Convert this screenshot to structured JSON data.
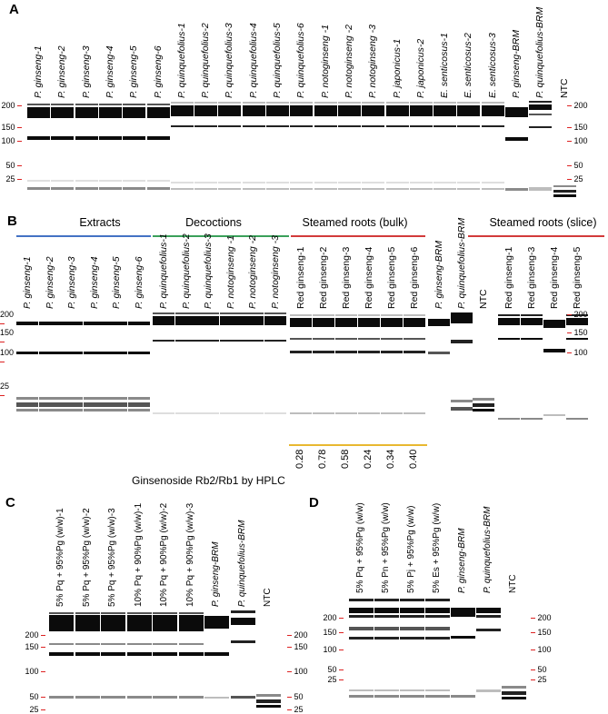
{
  "panels": {
    "A": {
      "letter": "A",
      "lanes": [
        "P. ginseng-1",
        "P. ginseng-2",
        "P. ginseng-3",
        "P. ginseng-4",
        "P. ginseng-5",
        "P. ginseng-6",
        "P. quinquefolius-1",
        "P. quinquefolius-2",
        "P. quinquefolius-3",
        "P. quinquefolius-4",
        "P. quinquefolius-5",
        "P. quinquefolius-6",
        "P. notoginseng -1",
        "P. notoginseng -2",
        "P. notoginseng -3",
        "P. japonicus-1",
        "P. japonicus-2",
        "E. senticosus-1",
        "E. senticosus-2",
        "E. senticosus-3",
        "P. ginseng-BRM",
        "P. quinquefolius-BRM",
        "NTC"
      ],
      "markers_left": [
        "200",
        "150",
        "100",
        "50",
        "25"
      ],
      "markers_right": [
        "200",
        "150",
        "100",
        "50",
        "25"
      ]
    },
    "B": {
      "letter": "B",
      "groups": [
        "Extracts",
        "Decoctions",
        "Steamed roots (bulk)",
        "Steamed roots (slice)"
      ],
      "lanes": [
        "P. ginseng-1",
        "P. ginseng-2",
        "P. ginseng-3",
        "P. ginseng-4",
        "P. ginseng-5",
        "P. ginseng-6",
        "P. quinquefolius-1",
        "P. quinquefolius-2",
        "P. quinquefolius-3",
        "P. notoginseng -1",
        "P. notoginseng -2",
        "P. notoginseng -3",
        "Red ginseng-1",
        "Red ginseng-2",
        "Red ginseng-3",
        "Red ginseng-4",
        "Red ginseng-5",
        "Red ginseng-6",
        "P. ginseng-BRM",
        "P. quinquefolius-BRM",
        "NTC",
        "Red ginseng-1",
        "Red ginseng-3",
        "Red ginseng-4",
        "Red ginseng-5"
      ],
      "markers_left": [
        "200",
        "150",
        "100",
        "25"
      ],
      "markers_right": [
        "200",
        "150",
        "100"
      ],
      "hplc_label": "Ginsenoside Rb2/Rb1 by HPLC",
      "hplc_values": [
        "0.28",
        "0.78",
        "0.58",
        "0.24",
        "0.34",
        "0.40"
      ]
    },
    "C": {
      "letter": "C",
      "lanes": [
        "5% Pq + 95%Pg (w/w)-1",
        "5% Pq + 95%Pg (w/w)-2",
        "5% Pq + 95%Pg (w/w)-3",
        "10% Pq + 90%Pg (w/w)-1",
        "10% Pq + 90%Pg (w/w)-2",
        "10% Pq + 90%Pg (w/w)-3",
        "P. ginseng-BRM",
        "P. quinquefolius-BRM",
        "NTC"
      ],
      "markers_left": [
        "200",
        "150",
        "100",
        "50",
        "25"
      ],
      "markers_right": [
        "200",
        "150",
        "100",
        "50",
        "25"
      ]
    },
    "D": {
      "letter": "D",
      "lanes": [
        "5% Pq + 95%Pg (w/w)",
        "5% Pn + 95%Pg (w/w)",
        "5% Pj + 95%Pg (w/w)",
        "5% Es + 95%Pg (w/w)",
        "P. ginseng-BRM",
        "P. quinquefolius-BRM",
        "NTC"
      ],
      "markers_left": [
        "200",
        "150",
        "100",
        "50",
        "25"
      ],
      "markers_right": [
        "200",
        "150",
        "100",
        "50",
        "25"
      ]
    }
  },
  "colors": {
    "extracts": "#4472c4",
    "decoctions": "#3aa05a",
    "bulk": "#d23a3a",
    "slice": "#d23a3a",
    "hplc_line": "#e8b830",
    "marker_tick": "#dd2222"
  }
}
